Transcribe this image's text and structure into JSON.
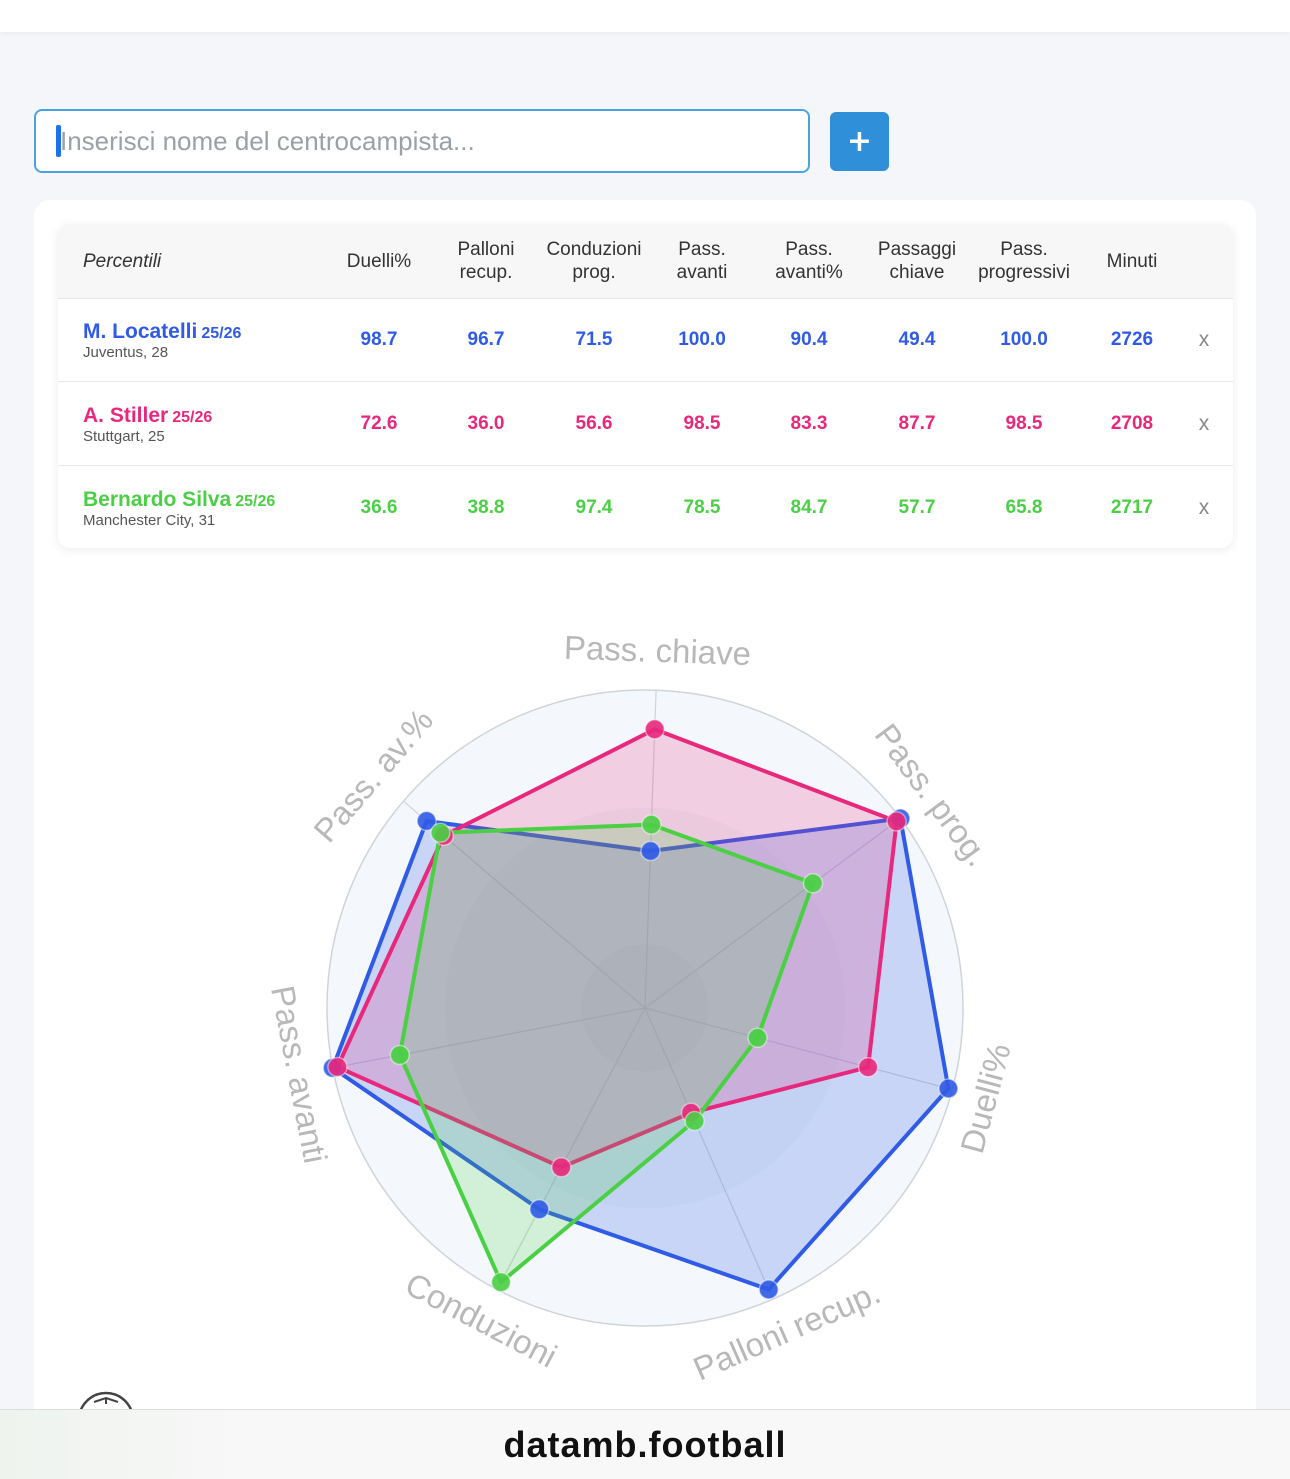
{
  "search": {
    "placeholder": "Inserisci nome del centrocampista...",
    "add_button": "+"
  },
  "table": {
    "headers": [
      "Percentili",
      "Duelli%",
      "Palloni\nrecup.",
      "Conduzioni\nprog.",
      "Pass.\navanti",
      "Pass.\navanti%",
      "Passaggi\nchiave",
      "Pass.\nprogressivi",
      "Minuti"
    ],
    "remove_label": "x",
    "players": [
      {
        "name": "M. Locatelli",
        "season": "25/26",
        "team": "Juventus, 28",
        "color": "#2f5be6",
        "values": [
          "98.7",
          "96.7",
          "71.5",
          "100.0",
          "90.4",
          "49.4",
          "100.0",
          "2726"
        ]
      },
      {
        "name": "A. Stiller",
        "season": "25/26",
        "team": "Stuttgart, 25",
        "color": "#e8287c",
        "values": [
          "72.6",
          "36.0",
          "56.6",
          "98.5",
          "83.3",
          "87.7",
          "98.5",
          "2708"
        ]
      },
      {
        "name": "Bernardo Silva",
        "season": "25/26",
        "team": "Manchester City, 31",
        "color": "#4bcf45",
        "values": [
          "36.6",
          "38.8",
          "97.4",
          "78.5",
          "84.7",
          "57.7",
          "65.8",
          "2717"
        ]
      }
    ]
  },
  "chart_data": {
    "type": "radar",
    "axes": [
      "Pass. chiave",
      "Pass. prog.",
      "Duelli%",
      "Palloni recup.",
      "Conduzioni",
      "Pass. avanti",
      "Pass. av.%"
    ],
    "range": [
      0,
      100
    ],
    "series": [
      {
        "name": "M. Locatelli",
        "color": "#2f5be6",
        "values": [
          49.4,
          100.0,
          98.7,
          96.7,
          71.5,
          100.0,
          90.4
        ]
      },
      {
        "name": "A. Stiller",
        "color": "#e8287c",
        "values": [
          87.7,
          98.5,
          72.6,
          36.0,
          56.6,
          98.5,
          83.3
        ]
      },
      {
        "name": "Bernardo Silva",
        "color": "#4bcf45",
        "values": [
          57.7,
          65.8,
          36.6,
          38.8,
          97.4,
          78.5,
          84.7
        ]
      }
    ]
  },
  "footer": {
    "brand": "datamb.football"
  }
}
